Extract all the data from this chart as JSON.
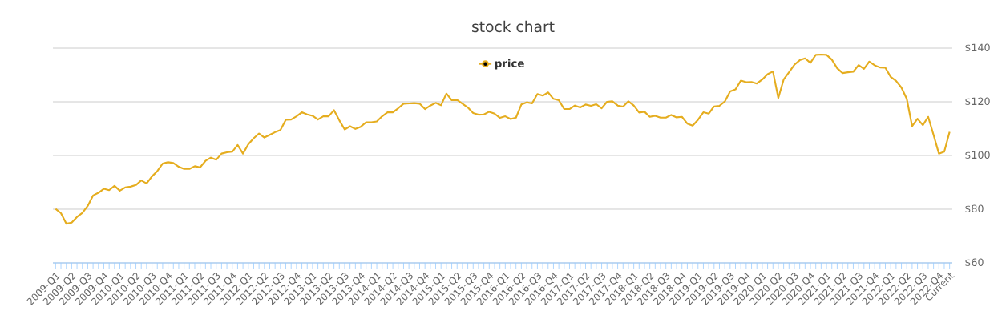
{
  "chart_data": {
    "type": "line",
    "title": "stock chart",
    "categories": [
      "2009-Q1",
      null,
      null,
      "2009-Q2",
      null,
      null,
      "2009-Q3",
      null,
      null,
      "2009-Q4",
      null,
      null,
      "2010-Q1",
      null,
      null,
      "2010-Q2",
      null,
      null,
      "2010-Q3",
      null,
      null,
      "2010-Q4",
      null,
      null,
      "2011-Q1",
      null,
      null,
      "2011-Q2",
      null,
      null,
      "2011-Q3",
      null,
      null,
      "2011-Q4",
      null,
      null,
      "2012-Q1",
      null,
      null,
      "2012-Q2",
      null,
      null,
      "2012-Q3",
      null,
      null,
      "2012-Q4",
      null,
      null,
      "2013-Q1",
      null,
      null,
      "2013-Q2",
      null,
      null,
      "2013-Q3",
      null,
      null,
      "2013-Q4",
      null,
      null,
      "2014-Q1",
      null,
      null,
      "2014-Q2",
      null,
      null,
      "2014-Q3",
      null,
      null,
      "2014-Q4",
      null,
      null,
      "2015-Q1",
      null,
      null,
      "2015-Q2",
      null,
      null,
      "2015-Q3",
      null,
      null,
      "2015-Q4",
      null,
      null,
      "2016-Q1",
      null,
      null,
      "2016-Q2",
      null,
      null,
      "2016-Q3",
      null,
      null,
      "2016-Q4",
      null,
      null,
      "2017-Q1",
      null,
      null,
      "2017-Q2",
      null,
      null,
      "2017-Q3",
      null,
      null,
      "2017-Q4",
      null,
      null,
      "2018-Q1",
      null,
      null,
      "2018-Q2",
      null,
      null,
      "2018-Q3",
      null,
      null,
      "2018-Q4",
      null,
      null,
      "2019-Q1",
      null,
      null,
      "2019-Q2",
      null,
      null,
      "2019-Q3",
      null,
      null,
      "2019-Q4",
      null,
      null,
      "2020-Q1",
      null,
      null,
      "2020-Q2",
      null,
      null,
      "2020-Q3",
      null,
      null,
      "2020-Q4",
      null,
      null,
      "2021-Q1",
      null,
      null,
      "2021-Q2",
      null,
      null,
      "2021-Q3",
      null,
      null,
      "2021-Q4",
      null,
      null,
      "2022-Q1",
      null,
      null,
      "2022-Q2",
      null,
      null,
      "2022-Q3",
      null,
      null,
      "2022-Q4",
      null,
      "Current"
    ],
    "series": [
      {
        "name": "price",
        "color": "#e5ad1f",
        "values": [
          80.1,
          78.5,
          74.6,
          75.0,
          77.1,
          78.6,
          81.2,
          85.1,
          86.1,
          87.6,
          87.1,
          88.7,
          86.9,
          88.1,
          88.4,
          89.0,
          90.7,
          89.6,
          92.2,
          94.2,
          97.0,
          97.5,
          97.2,
          95.8,
          95.0,
          95.0,
          96.0,
          95.6,
          98.0,
          99.2,
          98.4,
          100.7,
          101.2,
          101.4,
          103.9,
          100.7,
          104.2,
          106.4,
          108.2,
          106.7,
          107.7,
          108.7,
          109.5,
          113.3,
          113.4,
          114.6,
          116.1,
          115.3,
          114.8,
          113.4,
          114.6,
          114.6,
          116.9,
          113.1,
          109.7,
          110.9,
          109.9,
          110.7,
          112.4,
          112.4,
          112.7,
          114.6,
          116.1,
          116.1,
          117.6,
          119.3,
          119.4,
          119.5,
          119.3,
          117.3,
          118.6,
          119.6,
          118.7,
          123.1,
          120.6,
          120.7,
          119.3,
          117.9,
          115.8,
          115.2,
          115.3,
          116.3,
          115.6,
          114.0,
          114.6,
          113.6,
          114.1,
          119.0,
          119.8,
          119.4,
          122.9,
          122.3,
          123.5,
          121.1,
          120.6,
          117.3,
          117.3,
          118.6,
          117.9,
          119.0,
          118.5,
          119.1,
          117.6,
          120.0,
          120.2,
          118.6,
          118.2,
          120.2,
          118.6,
          116.0,
          116.3,
          114.4,
          114.8,
          114.1,
          114.1,
          115.1,
          114.2,
          114.4,
          111.9,
          111.1,
          113.3,
          116.1,
          115.6,
          118.3,
          118.5,
          120.1,
          123.9,
          124.6,
          127.9,
          127.3,
          127.4,
          126.8,
          128.3,
          130.3,
          131.3,
          121.4,
          128.3,
          131.0,
          133.8,
          135.5,
          136.2,
          134.5,
          137.5,
          137.6,
          137.5,
          135.7,
          132.5,
          130.7,
          131.0,
          131.2,
          133.7,
          132.3,
          135.0,
          133.6,
          132.8,
          132.7,
          129.3,
          127.8,
          125.3,
          121.1,
          110.9,
          113.7,
          111.3,
          114.4,
          107.7,
          100.7,
          101.4,
          108.8
        ]
      }
    ],
    "ylim": [
      60,
      140
    ],
    "yticks": [
      {
        "value": 60,
        "label": "$60"
      },
      {
        "value": 80,
        "label": "$80"
      },
      {
        "value": 100,
        "label": "$100"
      },
      {
        "value": 120,
        "label": "$120"
      },
      {
        "value": 140,
        "label": "$140"
      }
    ],
    "grid": "y",
    "legend": "top"
  }
}
